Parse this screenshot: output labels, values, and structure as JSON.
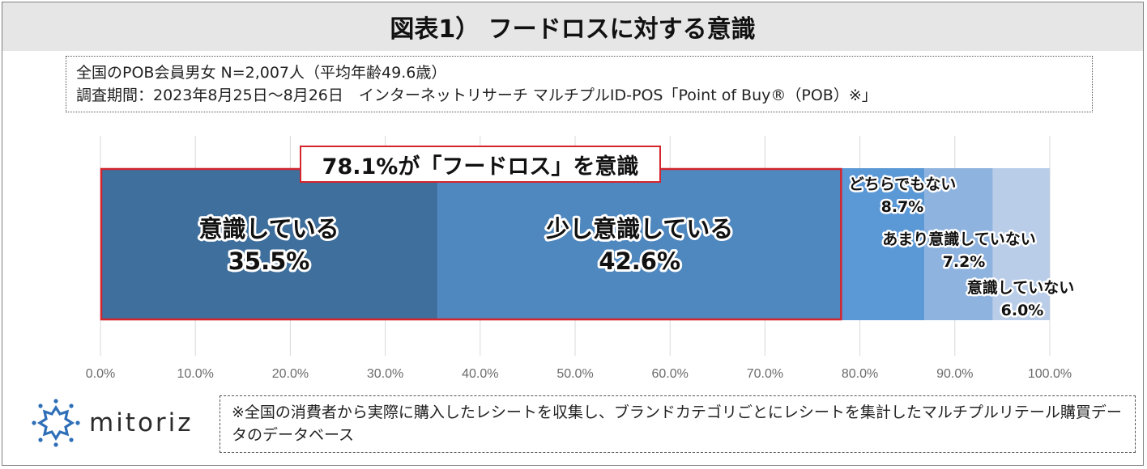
{
  "title": "図表1） フードロスに対する意識",
  "info": {
    "line1": "全国のPOB会員男女 N=2,007人（平均年齢49.6歳）",
    "line2": "調査期間：2023年8月25日～8月26日　インターネットリサーチ マルチプルID-POS「Point of Buy®（POB）※」"
  },
  "callout": "78.1%が「フードロス」を意識",
  "chart_data": {
    "type": "bar",
    "orientation": "horizontal-stacked-100",
    "xlim": [
      0,
      100
    ],
    "ticks": [
      "0.0%",
      "10.0%",
      "20.0%",
      "30.0%",
      "40.0%",
      "50.0%",
      "60.0%",
      "70.0%",
      "80.0%",
      "90.0%",
      "100.0%"
    ],
    "grid": true,
    "series": [
      {
        "name": "意識している",
        "value": 35.5,
        "label": "35.5%",
        "color": "#3f6f9c"
      },
      {
        "name": "少し意識している",
        "value": 42.6,
        "label": "42.6%",
        "color": "#4f87bf"
      },
      {
        "name": "どちらでもない",
        "value": 8.7,
        "label": "8.7%",
        "color": "#5b98d6"
      },
      {
        "name": "あまり意識していない",
        "value": 7.2,
        "label": "7.2%",
        "color": "#8fb3df"
      },
      {
        "name": "意識していない",
        "value": 6.0,
        "label": "6.0%",
        "color": "#b9cde9"
      }
    ],
    "highlight_color": "#d4252d"
  },
  "logo": {
    "text": "mitoriz",
    "icon": "sun-burst-icon",
    "color": "#2e6fb8"
  },
  "note": "※全国の消費者から実際に購入したレシートを収集し、ブランドカテゴリごとにレシートを集計したマルチプルリテール購買データのデータベース"
}
